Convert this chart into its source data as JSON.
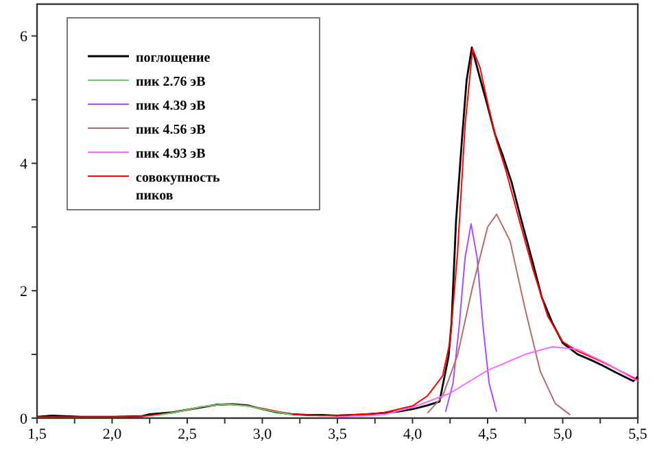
{
  "chart_data": {
    "type": "line",
    "legend": "top left",
    "xlim": [
      1.5,
      5.5
    ],
    "ylim": [
      0,
      6.5
    ],
    "xticks": [
      {
        "value": 1.5,
        "label": "1,5"
      },
      {
        "value": 1.75,
        "label": null
      },
      {
        "value": 2,
        "label": "2,0"
      },
      {
        "value": 2.25,
        "label": null
      },
      {
        "value": 2.5,
        "label": "2,5"
      },
      {
        "value": 2.75,
        "label": null
      },
      {
        "value": 3,
        "label": "3,0"
      },
      {
        "value": 3.25,
        "label": null
      },
      {
        "value": 3.5,
        "label": "3,5"
      },
      {
        "value": 3.75,
        "label": null
      },
      {
        "value": 4,
        "label": "4,0"
      },
      {
        "value": 4.25,
        "label": null
      },
      {
        "value": 4.5,
        "label": "4,5"
      },
      {
        "value": 4.75,
        "label": null
      },
      {
        "value": 5,
        "label": "5,0"
      },
      {
        "value": 5.25,
        "label": null
      },
      {
        "value": 5.5,
        "label": "5,5"
      }
    ],
    "yticks": [
      0,
      {
        "value": 1,
        "label": null
      },
      2,
      {
        "value": 3,
        "label": null
      },
      4,
      {
        "value": 5,
        "label": null
      },
      6
    ],
    "series": [
      {
        "name": "поглощение",
        "color": "#000000",
        "x": [
          1.5,
          1.6,
          1.8,
          2.0,
          2.2,
          2.25,
          2.4,
          2.5,
          2.6,
          2.7,
          2.8,
          2.9,
          3.0,
          3.1,
          3.2,
          3.3,
          3.4,
          3.5,
          3.7,
          3.9,
          4.0,
          4.1,
          4.18,
          4.24,
          4.26,
          4.29,
          4.33,
          4.36,
          4.395,
          4.45,
          4.5,
          4.55,
          4.6,
          4.66,
          4.72,
          4.8,
          4.86,
          4.93,
          5.0,
          5.1,
          5.2,
          5.27,
          5.35,
          5.47,
          5.5
        ],
        "values": [
          0.02,
          0.04,
          0.02,
          0.02,
          0.03,
          0.06,
          0.09,
          0.13,
          0.17,
          0.21,
          0.22,
          0.2,
          0.14,
          0.09,
          0.06,
          0.05,
          0.05,
          0.04,
          0.06,
          0.1,
          0.14,
          0.2,
          0.26,
          0.97,
          1.5,
          3.1,
          4.4,
          5.3,
          5.82,
          5.33,
          4.9,
          4.45,
          4.13,
          3.7,
          3.15,
          2.45,
          1.9,
          1.5,
          1.18,
          1.0,
          0.9,
          0.82,
          0.72,
          0.58,
          0.65
        ]
      },
      {
        "name": "пик 2.76 эВ",
        "color": "#66cc66",
        "x": [
          2.3,
          2.5,
          2.6,
          2.76,
          2.9,
          3.0,
          3.2
        ],
        "values": [
          0.04,
          0.13,
          0.18,
          0.22,
          0.19,
          0.14,
          0.05
        ]
      },
      {
        "name": "пик 4.39 эВ",
        "color": "#a64dff",
        "x": [
          4.22,
          4.27,
          4.31,
          4.35,
          4.39,
          4.43,
          4.47,
          4.51,
          4.56
        ],
        "values": [
          0.1,
          0.55,
          1.43,
          2.52,
          3.05,
          2.52,
          1.43,
          0.55,
          0.1
        ]
      },
      {
        "name": "пик 4.56 эВ",
        "color": "#b36b6b",
        "x": [
          4.1,
          4.2,
          4.3,
          4.4,
          4.5,
          4.56,
          4.65,
          4.75,
          4.85,
          4.95,
          5.05
        ],
        "values": [
          0.08,
          0.34,
          0.99,
          2.06,
          3.0,
          3.2,
          2.78,
          1.71,
          0.74,
          0.23,
          0.05
        ]
      },
      {
        "name": "пик 4.93 эВ",
        "color": "#ff66ff",
        "x": [
          3.5,
          3.8,
          4.0,
          4.25,
          4.5,
          4.75,
          4.93,
          5.1,
          5.3,
          5.5
        ],
        "values": [
          0.02,
          0.05,
          0.17,
          0.39,
          0.75,
          1.0,
          1.12,
          1.08,
          0.85,
          0.58
        ]
      },
      {
        "name": "совокупность пиков",
        "color": "#ff0000",
        "x": [
          1.5,
          2.0,
          2.2,
          2.4,
          2.5,
          2.6,
          2.76,
          2.9,
          3.0,
          3.2,
          3.4,
          3.6,
          3.8,
          4.0,
          4.1,
          4.2,
          4.25,
          4.3,
          4.35,
          4.4,
          4.45,
          4.5,
          4.56,
          4.62,
          4.7,
          4.8,
          4.9,
          5.0,
          5.1,
          5.2,
          5.3,
          5.4,
          5.5
        ],
        "values": [
          0.02,
          0.02,
          0.03,
          0.08,
          0.13,
          0.18,
          0.22,
          0.19,
          0.15,
          0.06,
          0.04,
          0.05,
          0.08,
          0.19,
          0.35,
          0.66,
          1.2,
          2.6,
          4.6,
          5.8,
          5.5,
          4.95,
          4.35,
          3.9,
          3.2,
          2.35,
          1.6,
          1.2,
          1.05,
          0.95,
          0.84,
          0.72,
          0.6
        ]
      }
    ]
  }
}
